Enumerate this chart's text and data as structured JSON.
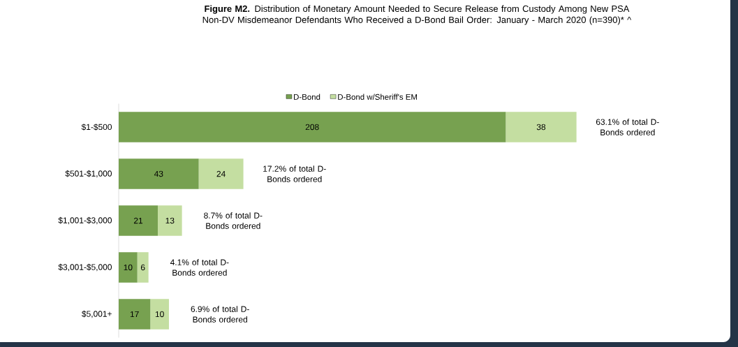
{
  "chart_data": {
    "type": "bar",
    "orientation": "horizontal",
    "stacked": true,
    "data_labels": true,
    "legend": "top",
    "title": "**Figure M2.** Distribution of Monetary Amount Needed to Secure Release from Custody Among New PSA Non-DV Misdemeanor Defendants Who Received a D-Bond Bail Order: January - March 2020 (n=390)* ^",
    "categories": [
      "$1-$500",
      "$501-$1,000",
      "$1,001-$3,000",
      "$3,001-$5,000",
      "$5,001+"
    ],
    "series": [
      {
        "name": "D-Bond",
        "color": "#77a150",
        "values": [
          208,
          43,
          21,
          10,
          17
        ]
      },
      {
        "name": "D-Bond w/Sheriff's EM",
        "color": "#c4dea1",
        "values": [
          38,
          24,
          13,
          6,
          10
        ]
      }
    ],
    "annotations": [
      {
        "text": "63.1% of total D-Bonds ordered",
        "x": 246,
        "y": "$1-$500"
      },
      {
        "text": "17.2% of total D-Bonds ordered",
        "x": 67,
        "y": "$501-$1,000"
      },
      {
        "text": "8.7% of total D-Bonds ordered",
        "x": 34,
        "y": "$1,001-$3,000"
      },
      {
        "text": "4.1% of total D-Bonds ordered",
        "x": 16,
        "y": "$3,001-$5,000"
      },
      {
        "text": "6.9% of total D-Bonds ordered",
        "x": 27,
        "y": "$5,001+"
      }
    ]
  }
}
